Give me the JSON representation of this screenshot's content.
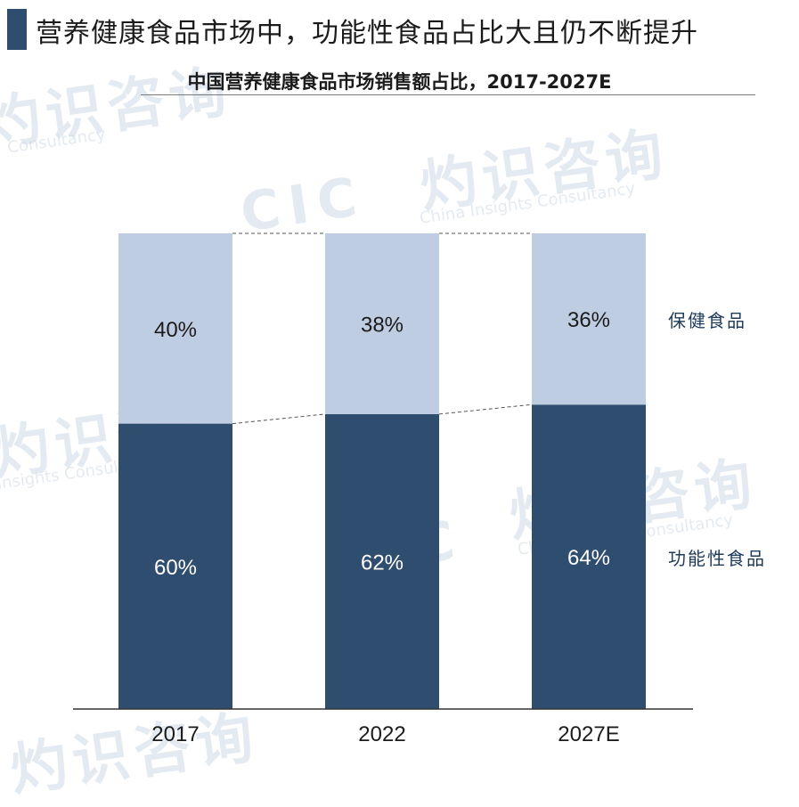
{
  "header": {
    "title": "营养健康食品市场中，功能性食品占比大且仍不断提升",
    "subtitle": "中国营养健康食品市场销售额占比，2017-2027E"
  },
  "watermarks": {
    "cn": "灼识咨询",
    "en_consultancy": "Consultancy",
    "en_full": "China Insights Consultancy",
    "en_insights": "Insights Consultancy",
    "logo": "CIC"
  },
  "colors": {
    "functional": "#2f4d6f",
    "health": "#bfcde3",
    "title_accent": "#2f4d6f"
  },
  "chart_data": {
    "type": "bar",
    "stacked": true,
    "percent": true,
    "categories": [
      "2017",
      "2022",
      "2027E"
    ],
    "series": [
      {
        "name": "功能性食品",
        "values": [
          60,
          62,
          64
        ],
        "labels": [
          "60%",
          "62%",
          "64%"
        ]
      },
      {
        "name": "保健食品",
        "values": [
          40,
          38,
          36
        ],
        "labels": [
          "40%",
          "38%",
          "36%"
        ]
      }
    ],
    "ylim": [
      0,
      100
    ],
    "grid": false,
    "legend_position": "right",
    "connector_lines": true
  }
}
